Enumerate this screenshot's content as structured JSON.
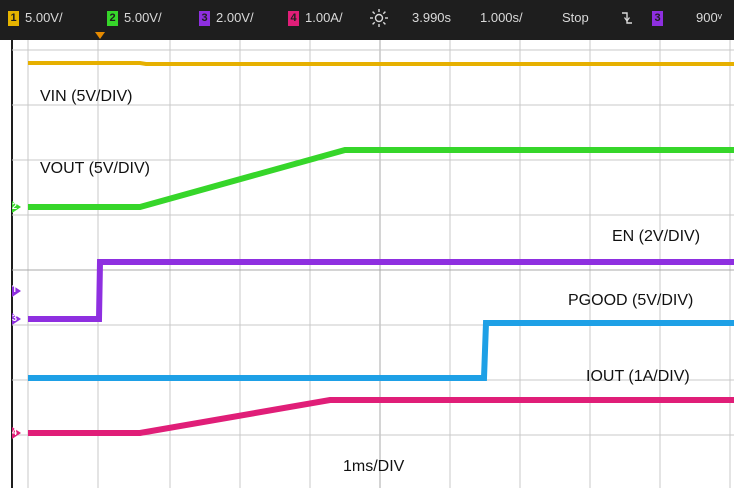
{
  "statusbar": {
    "channels": [
      {
        "badge": "1",
        "scale": "5.00V/",
        "color": "#e6b400"
      },
      {
        "badge": "2",
        "scale": "5.00V/",
        "color": "#36d62a"
      },
      {
        "badge": "3",
        "scale": "2.00V/",
        "color": "#8e2fe0"
      },
      {
        "badge": "4",
        "scale": "1.00A/",
        "color": "#e01e78"
      }
    ],
    "acquire_icon": "sun-icon",
    "timebase_position": "3.990ѕ",
    "timebase_scale": "1.000ѕ/",
    "run_state": "Stop",
    "trigger_slope_icon": "falling-edge-icon",
    "trigger_channel_badge": "3",
    "trigger_level": "900ᵛ"
  },
  "traces": [
    {
      "name": "VIN",
      "label": "VIN (5V/DIV)",
      "color": "#e6b000"
    },
    {
      "name": "VOUT",
      "label": "VOUT (5V/DIV)",
      "color": "#36d62a"
    },
    {
      "name": "EN",
      "label": "EN (2V/DIV)",
      "color": "#8e2fe0"
    },
    {
      "name": "PGOOD",
      "label": "PGOOD (5V/DIV)",
      "color": "#1ea0e6"
    },
    {
      "name": "IOUT",
      "label": "IOUT (1A/DIV)",
      "color": "#e01e78"
    }
  ],
  "markers": {
    "ch2": "2",
    "trigger": "T",
    "ch3": "3",
    "ch4": "4"
  },
  "horizontal_label": "1ms/DIV",
  "grid": {
    "divisions_x": 10,
    "divisions_y": 8,
    "color": "#c8c8c8"
  }
}
